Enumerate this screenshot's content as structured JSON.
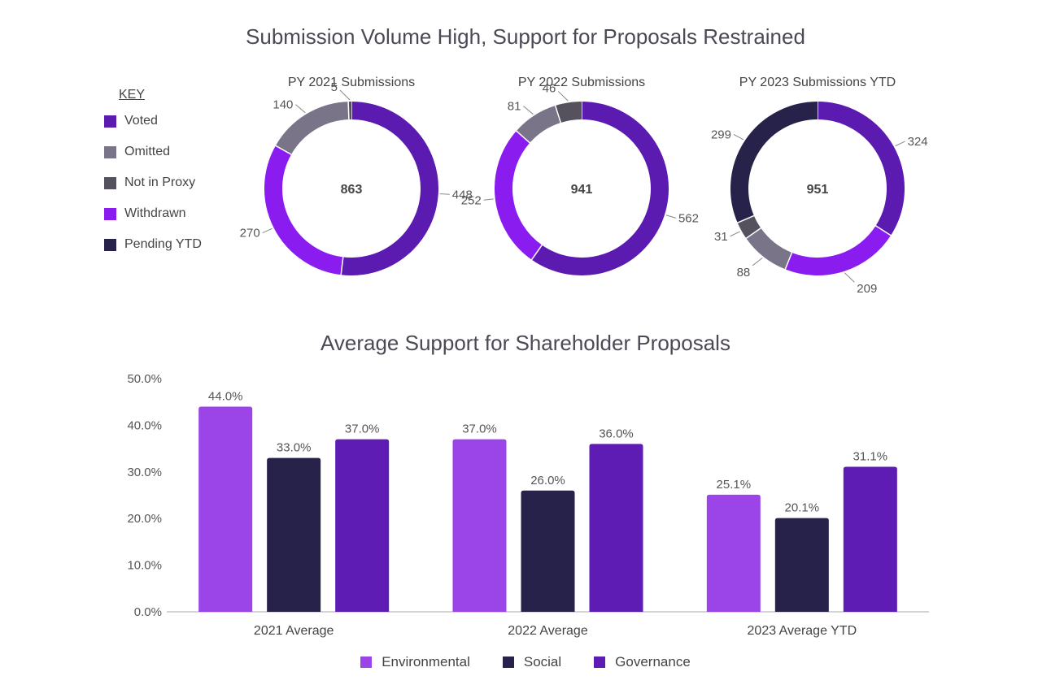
{
  "titles": {
    "donuts": "Submission Volume High, Support for Proposals Restrained",
    "bars": "Average Support for Shareholder Proposals"
  },
  "key": {
    "heading": "KEY",
    "items": [
      {
        "label": "Voted",
        "color": "#5b1ab0"
      },
      {
        "label": "Omitted",
        "color": "#7a7488"
      },
      {
        "label": "Not in Proxy",
        "color": "#55525e"
      },
      {
        "label": "Withdrawn",
        "color": "#8a1cf0"
      },
      {
        "label": "Pending YTD",
        "color": "#27224a"
      }
    ]
  },
  "chart_data": [
    {
      "type": "pie",
      "title": "PY 2021 Submissions",
      "total": "863",
      "slices": [
        {
          "category": "Voted",
          "value": 448,
          "label": "448"
        },
        {
          "category": "Withdrawn",
          "value": 270,
          "label": "270"
        },
        {
          "category": "Omitted",
          "value": 140,
          "label": "140"
        },
        {
          "category": "Not in Proxy",
          "value": 5,
          "label": "5"
        }
      ]
    },
    {
      "type": "pie",
      "title": "PY 2022 Submissions",
      "total": "941",
      "slices": [
        {
          "category": "Voted",
          "value": 562,
          "label": "562"
        },
        {
          "category": "Withdrawn",
          "value": 252,
          "label": "252"
        },
        {
          "category": "Omitted",
          "value": 81,
          "label": "81"
        },
        {
          "category": "Not in Proxy",
          "value": 46,
          "label": "46"
        }
      ]
    },
    {
      "type": "pie",
      "title": "PY 2023 Submissions YTD",
      "total": "951",
      "slices": [
        {
          "category": "Voted",
          "value": 324,
          "label": "324"
        },
        {
          "category": "Withdrawn",
          "value": 209,
          "label": "209"
        },
        {
          "category": "Omitted",
          "value": 88,
          "label": "88"
        },
        {
          "category": "Not in Proxy",
          "value": 31,
          "label": "31"
        },
        {
          "category": "Pending YTD",
          "value": 299,
          "label": "299"
        }
      ]
    },
    {
      "type": "bar",
      "title": "Average Support for Shareholder Proposals",
      "categories": [
        "2021 Average",
        "2022 Average",
        "2023 Average YTD"
      ],
      "series": [
        {
          "name": "Environmental",
          "color": "#9b45e8",
          "values": [
            44.0,
            37.0,
            25.1
          ],
          "labels": [
            "44.0%",
            "37.0%",
            "25.1%"
          ]
        },
        {
          "name": "Social",
          "color": "#27224a",
          "values": [
            33.0,
            26.0,
            20.1
          ],
          "labels": [
            "33.0%",
            "26.0%",
            "20.1%"
          ]
        },
        {
          "name": "Governance",
          "color": "#5e1cb4",
          "values": [
            37.0,
            36.0,
            31.1
          ],
          "labels": [
            "37.0%",
            "36.0%",
            "31.1%"
          ]
        }
      ],
      "ylim": [
        0,
        50
      ],
      "yticks": [
        "0.0%",
        "10.0%",
        "20.0%",
        "30.0%",
        "40.0%",
        "50.0%"
      ],
      "grid": false,
      "legend": "bottom"
    }
  ]
}
